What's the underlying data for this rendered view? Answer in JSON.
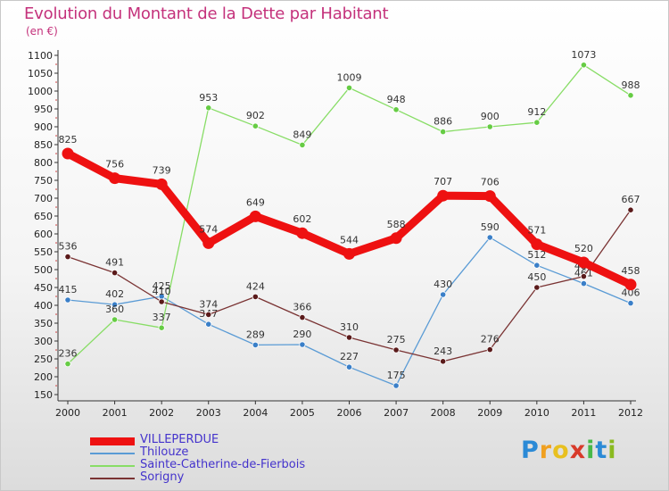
{
  "header": {
    "title": "Evolution du Montant de la Dette par Habitant",
    "unit": "(en €)"
  },
  "logo": {
    "letters": [
      {
        "ch": "P",
        "color": "#2b8ad6"
      },
      {
        "ch": "r",
        "color": "#f0a020"
      },
      {
        "ch": "o",
        "color": "#e8c020"
      },
      {
        "ch": "x",
        "color": "#d83a2a"
      },
      {
        "ch": "i",
        "color": "#48b848"
      },
      {
        "ch": "t",
        "color": "#2b8ad6"
      },
      {
        "ch": "i",
        "color": "#8aba20"
      }
    ]
  },
  "chart_data": {
    "type": "line",
    "title": "Evolution du Montant de la Dette par Habitant",
    "ylabel": "(en €)",
    "xlabel": "",
    "x": [
      "2000",
      "2001",
      "2002",
      "2003",
      "2004",
      "2005",
      "2006",
      "2007",
      "2008",
      "2009",
      "2010",
      "2011",
      "2012"
    ],
    "ylim": [
      150,
      1100
    ],
    "yticks": [
      150,
      200,
      250,
      300,
      350,
      400,
      450,
      500,
      550,
      600,
      650,
      700,
      750,
      800,
      850,
      900,
      950,
      1000,
      1050,
      1100
    ],
    "grid": false,
    "legend_position": "bottom-left",
    "series": [
      {
        "name": "VILLEPERDUE",
        "color": "#ee1111",
        "values": [
          825,
          756,
          739,
          574,
          649,
          602,
          544,
          588,
          707,
          706,
          571,
          520,
          458
        ]
      },
      {
        "name": "Thilouze",
        "color": "#5a9bd5",
        "values": [
          415,
          402,
          425,
          347,
          289,
          290,
          227,
          175,
          430,
          590,
          512,
          461,
          406
        ]
      },
      {
        "name": "Sainte-Catherine-de-Fierbois",
        "color": "#88dd66",
        "values": [
          236,
          360,
          337,
          953,
          902,
          849,
          1009,
          948,
          886,
          900,
          912,
          1073,
          988
        ]
      },
      {
        "name": "Sorigny",
        "color": "#7a3333",
        "values": [
          536,
          491,
          410,
          374,
          424,
          366,
          310,
          275,
          243,
          276,
          450,
          481,
          667
        ]
      }
    ]
  }
}
